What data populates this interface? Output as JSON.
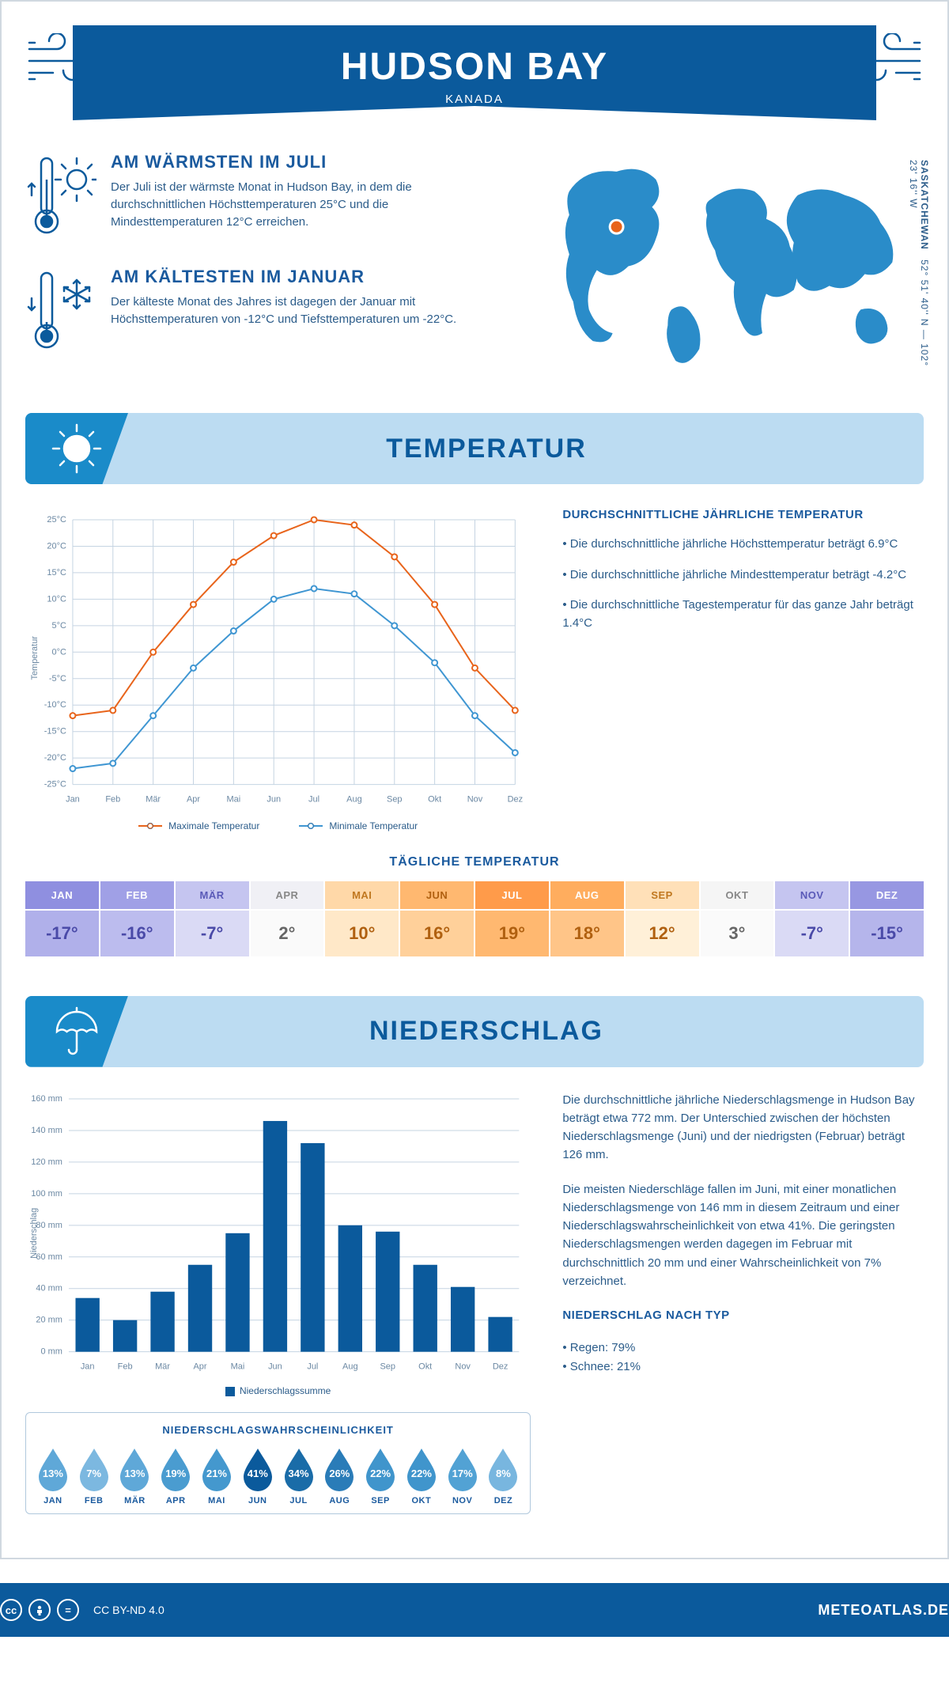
{
  "header": {
    "city": "HUDSON BAY",
    "country": "KANADA"
  },
  "coords": {
    "province": "SASKATCHEWAN",
    "lat": "52° 51' 40'' N",
    "lon": "102° 23' 16'' W"
  },
  "facts": {
    "warm": {
      "title": "AM WÄRMSTEN IM JULI",
      "text": "Der Juli ist der wärmste Monat in Hudson Bay, in dem die durchschnittlichen Höchsttemperaturen 25°C und die Mindesttemperaturen 12°C erreichen."
    },
    "cold": {
      "title": "AM KÄLTESTEN IM JANUAR",
      "text": "Der kälteste Monat des Jahres ist dagegen der Januar mit Höchsttemperaturen von -12°C und Tiefsttemperaturen um -22°C."
    }
  },
  "sections": {
    "temp": "TEMPERATUR",
    "precip": "NIEDERSCHLAG"
  },
  "temp_chart": {
    "type": "line",
    "months": [
      "Jan",
      "Feb",
      "Mär",
      "Apr",
      "Mai",
      "Jun",
      "Jul",
      "Aug",
      "Sep",
      "Okt",
      "Nov",
      "Dez"
    ],
    "y_ticks": [
      -25,
      -20,
      -15,
      -10,
      -5,
      0,
      5,
      10,
      15,
      20,
      25
    ],
    "ylim": [
      -25,
      25
    ],
    "series": {
      "max": {
        "label": "Maximale Temperatur",
        "color": "#e8641b",
        "values": [
          -12,
          -11,
          0,
          9,
          17,
          22,
          25,
          24,
          18,
          9,
          -3,
          -11
        ]
      },
      "min": {
        "label": "Minimale Temperatur",
        "color": "#3f96d2",
        "values": [
          -22,
          -21,
          -12,
          -3,
          4,
          10,
          12,
          11,
          5,
          -2,
          -12,
          -19
        ]
      }
    },
    "y_axis_title": "Temperatur",
    "grid_color": "#c5d4e2",
    "label_fontsize": 11
  },
  "annual_temp": {
    "title": "DURCHSCHNITTLICHE JÄHRLICHE TEMPERATUR",
    "bullets": [
      "• Die durchschnittliche jährliche Höchsttemperatur beträgt 6.9°C",
      "• Die durchschnittliche jährliche Mindesttemperatur beträgt -4.2°C",
      "• Die durchschnittliche Tagestemperatur für das ganze Jahr beträgt 1.4°C"
    ]
  },
  "daily_temp": {
    "title": "TÄGLICHE TEMPERATUR",
    "months": [
      "JAN",
      "FEB",
      "MÄR",
      "APR",
      "MAI",
      "JUN",
      "JUL",
      "AUG",
      "SEP",
      "OKT",
      "NOV",
      "DEZ"
    ],
    "values": [
      "-17°",
      "-16°",
      "-7°",
      "2°",
      "10°",
      "16°",
      "19°",
      "18°",
      "12°",
      "3°",
      "-7°",
      "-15°"
    ],
    "head_colors": [
      "#8f8fe0",
      "#a0a0e6",
      "#c5c5f0",
      "#f0f0f5",
      "#ffd8a8",
      "#ffb870",
      "#ff9b4a",
      "#ffad5e",
      "#ffe0b8",
      "#f5f5f5",
      "#c5c5f0",
      "#9797e2"
    ],
    "val_colors": [
      "#b0b0ea",
      "#bcbcee",
      "#dadaf5",
      "#fafafa",
      "#ffe8c8",
      "#ffd09a",
      "#ffb870",
      "#ffc588",
      "#fff0d8",
      "#fafafa",
      "#dadaf5",
      "#b5b5eb"
    ],
    "text_colors": [
      "#ffffff",
      "#ffffff",
      "#5a5ab8",
      "#888888",
      "#c07820",
      "#b06010",
      "#ffffff",
      "#ffffff",
      "#c07820",
      "#888888",
      "#5a5ab8",
      "#ffffff"
    ],
    "val_text_colors": [
      "#4a4aa8",
      "#4a4aa8",
      "#4a4aa8",
      "#666666",
      "#b06010",
      "#b06010",
      "#b06010",
      "#b06010",
      "#b06010",
      "#666666",
      "#4a4aa8",
      "#4a4aa8"
    ]
  },
  "precip_chart": {
    "type": "bar",
    "months": [
      "Jan",
      "Feb",
      "Mär",
      "Apr",
      "Mai",
      "Jun",
      "Jul",
      "Aug",
      "Sep",
      "Okt",
      "Nov",
      "Dez"
    ],
    "values": [
      34,
      20,
      38,
      55,
      75,
      146,
      132,
      80,
      76,
      55,
      41,
      22
    ],
    "y_ticks": [
      0,
      20,
      40,
      60,
      80,
      100,
      120,
      140,
      160
    ],
    "ylim": [
      0,
      160
    ],
    "bar_color": "#0b5a9c",
    "y_axis_title": "Niederschlag",
    "legend": "Niederschlagssumme",
    "grid_color": "#c5d4e2"
  },
  "precip_text": {
    "p1": "Die durchschnittliche jährliche Niederschlagsmenge in Hudson Bay beträgt etwa 772 mm. Der Unterschied zwischen der höchsten Niederschlagsmenge (Juni) und der niedrigsten (Februar) beträgt 126 mm.",
    "p2": "Die meisten Niederschläge fallen im Juni, mit einer monatlichen Niederschlagsmenge von 146 mm in diesem Zeitraum und einer Niederschlagswahrscheinlichkeit von etwa 41%. Die geringsten Niederschlagsmengen werden dagegen im Februar mit durchschnittlich 20 mm und einer Wahrscheinlichkeit von 7% verzeichnet.",
    "type_title": "NIEDERSCHLAG NACH TYP",
    "type_rain": "• Regen: 79%",
    "type_snow": "• Schnee: 21%"
  },
  "prob": {
    "title": "NIEDERSCHLAGSWAHRSCHEINLICHKEIT",
    "months": [
      "JAN",
      "FEB",
      "MÄR",
      "APR",
      "MAI",
      "JUN",
      "JUL",
      "AUG",
      "SEP",
      "OKT",
      "NOV",
      "DEZ"
    ],
    "values": [
      "13%",
      "7%",
      "13%",
      "19%",
      "21%",
      "41%",
      "34%",
      "26%",
      "22%",
      "22%",
      "17%",
      "8%"
    ],
    "colors": [
      "#5fa8d8",
      "#7cb8e0",
      "#5fa8d8",
      "#4a9cd0",
      "#4498ce",
      "#0b5a9c",
      "#1a6ca8",
      "#2a7cb8",
      "#4095cc",
      "#4095cc",
      "#52a2d4",
      "#78b6df"
    ]
  },
  "footer": {
    "license": "CC BY-ND 4.0",
    "site": "METEOATLAS.DE"
  },
  "colors": {
    "primary": "#0b5a9c",
    "accent": "#1a8bc9",
    "band": "#bcdcf2"
  }
}
